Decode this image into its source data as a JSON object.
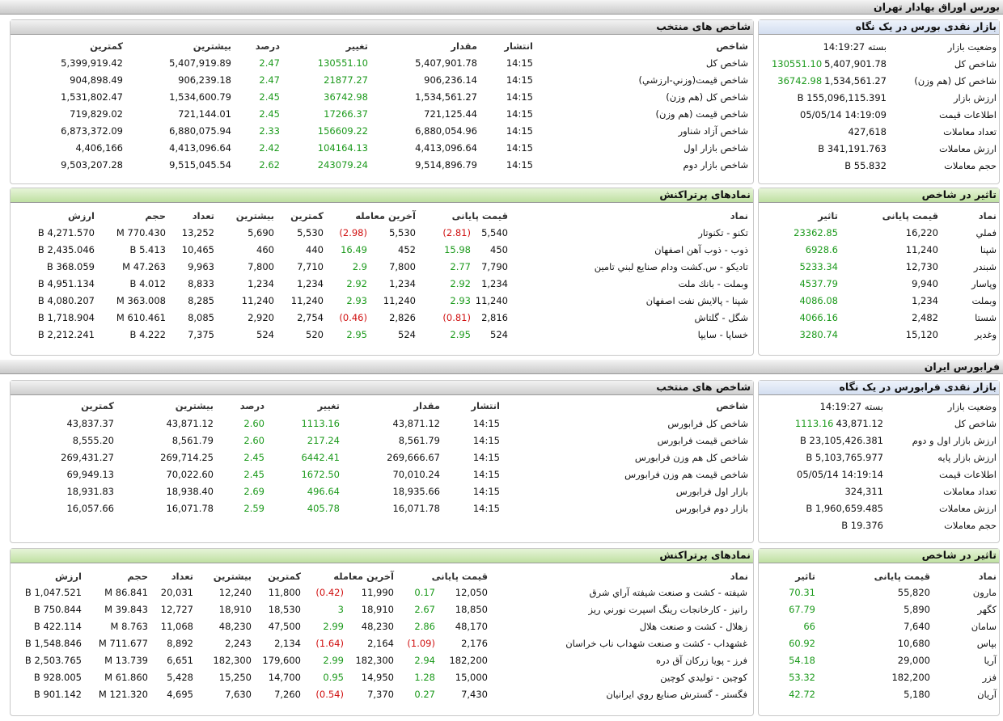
{
  "sections": [
    {
      "title": "بورس اوراق بهادار تهران",
      "selected": {
        "title": "شاخص های منتخب",
        "columns": [
          "شاخص",
          "انتشار",
          "مقدار",
          "تغییر",
          "درصد",
          "بیشترین",
          "کمترین"
        ],
        "rows": [
          [
            "شاخص کل",
            "14:15",
            "5,407,901.78",
            "130551.10",
            "2.47",
            "5,407,919.89",
            "5,399,919.42"
          ],
          [
            "شاخص قیمت(وزني-ارزشي)",
            "14:15",
            "906,236.14",
            "21877.27",
            "2.47",
            "906,239.18",
            "904,898.49"
          ],
          [
            "شاخص کل (هم وزن)",
            "14:15",
            "1,534,561.27",
            "36742.98",
            "2.45",
            "1,534,600.79",
            "1,531,802.47"
          ],
          [
            "شاخص قیمت (هم وزن)",
            "14:15",
            "721,125.44",
            "17266.37",
            "2.45",
            "721,144.01",
            "719,829.02"
          ],
          [
            "شاخص آزاد شناور",
            "14:15",
            "6,880,054.96",
            "156609.22",
            "2.33",
            "6,880,075.94",
            "6,873,372.09"
          ],
          [
            "شاخص بازار اول",
            "14:15",
            "4,413,096.64",
            "104164.13",
            "2.42",
            "4,413,096.64",
            "4,406,166"
          ],
          [
            "شاخص بازار دوم",
            "14:15",
            "9,514,896.79",
            "243079.24",
            "2.62",
            "9,515,045.54",
            "9,503,207.28"
          ]
        ]
      },
      "glance": {
        "title": "بازار نقدی بورس در یک نگاه",
        "rows": [
          {
            "label": "وضعیت بازار",
            "value": "بسته 14:19:27"
          },
          {
            "label": "شاخص کل",
            "value": "5,407,901.78",
            "change": "130551.10"
          },
          {
            "label": "شاخص کل (هم وزن)",
            "value": "1,534,561.27",
            "change": "36742.98"
          },
          {
            "label": "ارزش بازار",
            "value": "155,096,115.391 B"
          },
          {
            "label": "اطلاعات قیمت",
            "value": "14:19:09 05/05/14"
          },
          {
            "label": "تعداد معاملات",
            "value": "427,618"
          },
          {
            "label": "ارزش معاملات",
            "value": "341,191.763 B"
          },
          {
            "label": "حجم معاملات",
            "value": "55.832 B"
          }
        ]
      },
      "trades": {
        "title": "نمادهای پرتراکنش",
        "columns": [
          "نماد",
          "قیمت پایانی",
          "آخرین معامله",
          "کمترین",
          "بیشترین",
          "تعداد",
          "حجم",
          "ارزش"
        ],
        "rows": [
          [
            "تکنو - تکنوتار",
            "5,540",
            "(2.81)",
            "5,530",
            "(2.98)",
            "5,530",
            "5,690",
            "13,252",
            "770.430 M",
            "4,271.570 B"
          ],
          [
            "ذوب - ذوب آهن اصفهان",
            "450",
            "15.98",
            "452",
            "16.49",
            "440",
            "460",
            "10,465",
            "5.413 B",
            "2,435.046 B"
          ],
          [
            "تاديكو - س.کشت ودام صنايع لبني تامين",
            "7,790",
            "2.77",
            "7,800",
            "2.9",
            "7,710",
            "7,800",
            "9,963",
            "47.263 M",
            "368.059 B"
          ],
          [
            "وبملت - بانك ملت",
            "1,234",
            "2.92",
            "1,234",
            "2.92",
            "1,234",
            "1,234",
            "8,833",
            "4.012 B",
            "4,951.134 B"
          ],
          [
            "شپنا - پالايش نفت اصفهان",
            "11,240",
            "2.93",
            "11,240",
            "2.93",
            "11,240",
            "11,240",
            "8,285",
            "363.008 M",
            "4,080.207 B"
          ],
          [
            "شگل - گلتاش",
            "2,816",
            "(0.81)",
            "2,826",
            "(0.46)",
            "2,754",
            "2,920",
            "8,085",
            "610.461 M",
            "1,718.904 B"
          ],
          [
            "خساپا - سايپا",
            "524",
            "2.95",
            "524",
            "2.95",
            "520",
            "524",
            "7,375",
            "4.222 B",
            "2,212.241 B"
          ]
        ]
      },
      "impact": {
        "title": "تاثیر در شاخص",
        "columns": [
          "نماد",
          "قیمت پایانی",
          "تاثیر"
        ],
        "rows": [
          [
            "فملي",
            "16,220",
            "23362.85"
          ],
          [
            "شپنا",
            "11,240",
            "6928.6"
          ],
          [
            "شبندر",
            "12,730",
            "5233.34"
          ],
          [
            "وپاسار",
            "9,940",
            "4537.79"
          ],
          [
            "وبملت",
            "1,234",
            "4086.08"
          ],
          [
            "شستا",
            "2,482",
            "4066.16"
          ],
          [
            "وغدير",
            "15,120",
            "3280.74"
          ]
        ]
      }
    },
    {
      "title": "فرابورس ایران",
      "selected": {
        "title": "شاخص های منتخب",
        "columns": [
          "شاخص",
          "انتشار",
          "مقدار",
          "تغییر",
          "درصد",
          "بیشترین",
          "کمترین"
        ],
        "rows": [
          [
            "شاخص کل فرابورس",
            "14:15",
            "43,871.12",
            "1113.16",
            "2.60",
            "43,871.12",
            "43,837.37"
          ],
          [
            "شاخص قیمت فرابورس",
            "14:15",
            "8,561.79",
            "217.24",
            "2.60",
            "8,561.79",
            "8,555.20"
          ],
          [
            "شاخص کل هم وزن فرابورس",
            "14:15",
            "269,666.67",
            "6442.41",
            "2.45",
            "269,714.25",
            "269,431.27"
          ],
          [
            "شاخص قیمت هم وزن فرابورس",
            "14:15",
            "70,010.24",
            "1672.50",
            "2.45",
            "70,022.60",
            "69,949.13"
          ],
          [
            "بازار اول فرابورس",
            "14:15",
            "18,935.66",
            "496.64",
            "2.69",
            "18,938.40",
            "18,931.83"
          ],
          [
            "بازار دوم فرابورس",
            "14:15",
            "16,071.78",
            "405.78",
            "2.59",
            "16,071.78",
            "16,057.66"
          ]
        ]
      },
      "glance": {
        "title": "بازار نقدی فرابورس در یک نگاه",
        "rows": [
          {
            "label": "وضعیت بازار",
            "value": "بسته 14:19:27"
          },
          {
            "label": "شاخص کل",
            "value": "43,871.12",
            "change": "1113.16"
          },
          {
            "label": "ارزش بازار اول و دوم",
            "value": "23,105,426.381 B"
          },
          {
            "label": "ارزش بازار پایه",
            "value": "5,103,765.977 B"
          },
          {
            "label": "اطلاعات قیمت",
            "value": "14:19:14 05/05/14"
          },
          {
            "label": "تعداد معاملات",
            "value": "324,311"
          },
          {
            "label": "ارزش معاملات",
            "value": "1,960,659.485 B"
          },
          {
            "label": "حجم معاملات",
            "value": "19.376 B"
          }
        ]
      },
      "trades": {
        "title": "نمادهای پرتراکنش",
        "columns": [
          "نماد",
          "قیمت پایانی",
          "آخرین معامله",
          "کمترین",
          "بیشترین",
          "تعداد",
          "حجم",
          "ارزش"
        ],
        "rows": [
          [
            "شيفته - کشت و صنعت شيفته آراي شرق",
            "12,050",
            "0.17",
            "11,990",
            "(0.42)",
            "11,800",
            "12,240",
            "20,031",
            "86.841 M",
            "1,047.521 B"
          ],
          [
            "رانيز - کارخانجات رينگ اسپرت نورني ريز",
            "18,850",
            "2.67",
            "18,910",
            "3",
            "18,530",
            "18,910",
            "12,727",
            "39.843 M",
            "750.844 B"
          ],
          [
            "زهلال - کشت و صنعت هلال",
            "48,170",
            "2.86",
            "48,230",
            "2.99",
            "47,500",
            "48,230",
            "11,068",
            "8.763 M",
            "422.114 B"
          ],
          [
            "غشهداب - کشت و صنعت شهداب ناب خراسان",
            "2,176",
            "(1.09)",
            "2,164",
            "(1.64)",
            "2,134",
            "2,243",
            "8,892",
            "711.677 M",
            "1,548.846 B"
          ],
          [
            "فرز - پويا زرکان آق دره",
            "182,200",
            "2.94",
            "182,300",
            "2.99",
            "179,600",
            "182,300",
            "6,651",
            "13.739 M",
            "2,503.765 B"
          ],
          [
            "کوچين - توليدي کوچين",
            "15,000",
            "1.28",
            "14,950",
            "0.95",
            "14,700",
            "15,250",
            "5,428",
            "61.860 M",
            "928.005 B"
          ],
          [
            "فگستر - گسترش صنايع روي ايرانيان",
            "7,430",
            "0.27",
            "7,370",
            "(0.54)",
            "7,260",
            "7,630",
            "4,695",
            "121.320 M",
            "901.142 B"
          ]
        ]
      },
      "impact": {
        "title": "تاثیر در شاخص",
        "columns": [
          "نماد",
          "قیمت پایانی",
          "تاثیر"
        ],
        "rows": [
          [
            "مارون",
            "55,820",
            "70.31"
          ],
          [
            "کگهر",
            "5,890",
            "67.79"
          ],
          [
            "سامان",
            "7,640",
            "66"
          ],
          [
            "بپاس",
            "10,680",
            "60.92"
          ],
          [
            "آريا",
            "29,000",
            "54.18"
          ],
          [
            "فزر",
            "182,200",
            "53.32"
          ],
          [
            "آريان",
            "5,180",
            "42.72"
          ]
        ]
      }
    }
  ]
}
